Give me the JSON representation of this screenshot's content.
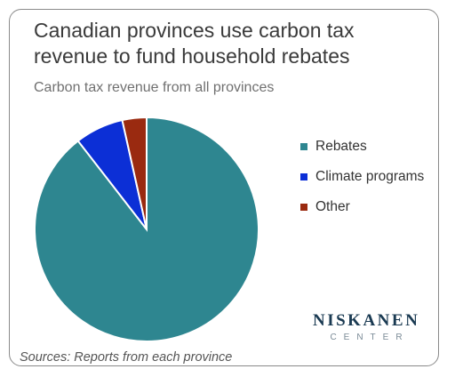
{
  "chart_data": {
    "type": "pie",
    "title": "Canadian provinces use carbon tax revenue to fund household rebates",
    "subtitle": "Carbon tax revenue from all provinces",
    "slices": [
      {
        "label": "Rebates",
        "value": 89.5,
        "color": "#2e8690"
      },
      {
        "label": "Climate programs",
        "value": 7.0,
        "color": "#0c2fd6"
      },
      {
        "label": "Other",
        "value": 3.5,
        "color": "#9a2a10"
      }
    ],
    "legend_position": "right"
  },
  "footer": {
    "source": "Sources: Reports from each province"
  },
  "logo": {
    "main": "NISKANEN",
    "sub": "CENTER"
  }
}
